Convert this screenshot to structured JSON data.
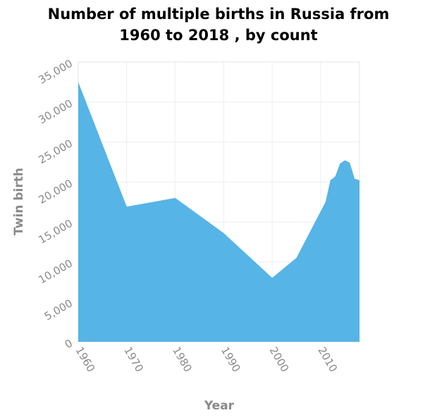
{
  "chart_data": {
    "type": "area",
    "title_lines": [
      "Number of multiple births in Russia from",
      "1960 to 2018 , by count"
    ],
    "xlabel": "Year",
    "ylabel": "Twin birth",
    "xlim": [
      1960,
      2018
    ],
    "ylim": [
      0,
      35000
    ],
    "x_ticks": [
      "1960",
      "1970",
      "1980",
      "1990",
      "2000",
      "2010"
    ],
    "y_ticks": [
      "0",
      "5,000",
      "10,000",
      "15,000",
      "20,000",
      "25,000",
      "30,000",
      "35,000"
    ],
    "grid": true,
    "colors": {
      "area": "#56b4e6"
    },
    "x": [
      1960,
      1970,
      1980,
      1990,
      2000,
      2005,
      2011,
      2012,
      2013,
      2014,
      2015,
      2016,
      2017,
      2018
    ],
    "values": [
      32500,
      16900,
      18000,
      13600,
      8000,
      10500,
      17500,
      20200,
      20700,
      22300,
      22700,
      22400,
      20400,
      20200
    ]
  }
}
